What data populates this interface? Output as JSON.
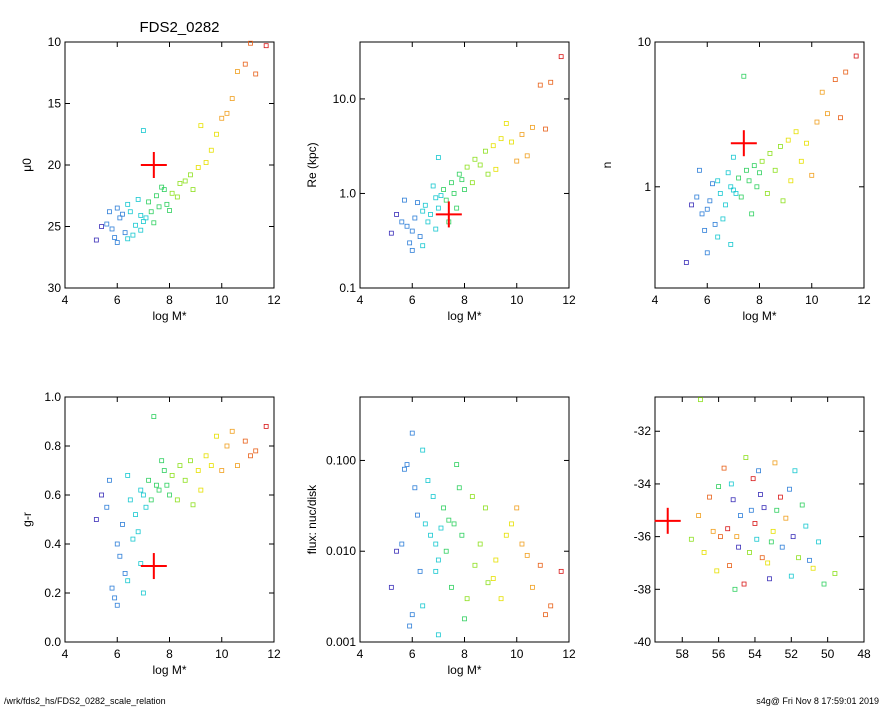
{
  "figure": {
    "footer_left": "/wrk/fds2_hs/FDS2_0282_scale_relation",
    "footer_right": "s4g@ Fri Nov  8 17:59:01 2019"
  },
  "colors": {
    "target_marker": "#ff0000",
    "axis": "#000000",
    "palette": [
      "#3b2fb8",
      "#2f7fd8",
      "#18c8d0",
      "#30d060",
      "#8ee020",
      "#e6e000",
      "#f0a020",
      "#e86018",
      "#d81818"
    ]
  },
  "chart_data": [
    {
      "type": "scatter",
      "title": "FDS2_0282",
      "xlabel": "log M*",
      "ylabel": "μ0",
      "xlim": [
        4,
        12
      ],
      "ylim": [
        30,
        10
      ],
      "y_inverted": true,
      "xticks": [
        4,
        6,
        8,
        10,
        12
      ],
      "yticks": [
        10,
        15,
        20,
        25,
        30
      ],
      "ytick_labels": [
        "10",
        "15",
        "20",
        "25",
        "30"
      ],
      "target": {
        "x": 7.4,
        "y": 20.0
      },
      "points": [
        [
          6.1,
          24.3
        ],
        [
          6.5,
          23.8
        ],
        [
          5.8,
          25.2
        ],
        [
          6.9,
          24.1
        ],
        [
          7.2,
          23.0
        ],
        [
          6.3,
          25.5
        ],
        [
          6.7,
          24.9
        ],
        [
          7.5,
          22.5
        ],
        [
          7.8,
          22.0
        ],
        [
          6.0,
          23.5
        ],
        [
          5.6,
          24.8
        ],
        [
          6.4,
          26.0
        ],
        [
          7.0,
          24.6
        ],
        [
          8.1,
          22.3
        ],
        [
          8.4,
          21.5
        ],
        [
          7.6,
          23.4
        ],
        [
          6.8,
          22.8
        ],
        [
          5.9,
          25.9
        ],
        [
          6.2,
          24.0
        ],
        [
          7.3,
          23.8
        ],
        [
          8.8,
          20.8
        ],
        [
          9.1,
          20.2
        ],
        [
          8.6,
          21.3
        ],
        [
          9.4,
          19.8
        ],
        [
          7.9,
          23.2
        ],
        [
          6.6,
          25.7
        ],
        [
          5.4,
          25.0
        ],
        [
          5.2,
          26.1
        ],
        [
          6.0,
          26.3
        ],
        [
          7.1,
          24.3
        ],
        [
          9.8,
          17.5
        ],
        [
          10.2,
          15.8
        ],
        [
          10.6,
          12.4
        ],
        [
          10.9,
          11.8
        ],
        [
          11.3,
          12.6
        ],
        [
          11.7,
          10.3
        ],
        [
          10.4,
          14.6
        ],
        [
          9.6,
          18.8
        ],
        [
          10.0,
          16.2
        ],
        [
          11.1,
          10.1
        ],
        [
          9.2,
          16.8
        ],
        [
          7.0,
          17.2
        ],
        [
          8.3,
          22.6
        ],
        [
          7.7,
          21.8
        ],
        [
          6.4,
          23.2
        ],
        [
          5.7,
          23.8
        ],
        [
          6.9,
          25.3
        ],
        [
          8.0,
          23.7
        ],
        [
          8.9,
          22.0
        ],
        [
          7.4,
          24.7
        ]
      ]
    },
    {
      "type": "scatter",
      "xlabel": "log M*",
      "ylabel": "Re (kpc)",
      "xlim": [
        4,
        12
      ],
      "ylim": [
        0.1,
        40
      ],
      "ylog": true,
      "xticks": [
        4,
        6,
        8,
        10,
        12
      ],
      "yticks": [
        0.1,
        1.0,
        10.0
      ],
      "ytick_labels": [
        "0.1",
        "1.0",
        "10.0"
      ],
      "target": {
        "x": 7.4,
        "y": 0.6
      },
      "points": [
        [
          6.1,
          0.55
        ],
        [
          6.5,
          0.75
        ],
        [
          5.8,
          0.45
        ],
        [
          6.9,
          0.9
        ],
        [
          7.2,
          1.1
        ],
        [
          6.3,
          0.35
        ],
        [
          6.7,
          0.6
        ],
        [
          7.5,
          1.3
        ],
        [
          7.8,
          1.6
        ],
        [
          6.0,
          0.4
        ],
        [
          5.6,
          0.5
        ],
        [
          6.4,
          0.28
        ],
        [
          7.0,
          0.7
        ],
        [
          8.1,
          1.9
        ],
        [
          8.4,
          2.3
        ],
        [
          7.6,
          1.0
        ],
        [
          6.8,
          1.2
        ],
        [
          5.9,
          0.3
        ],
        [
          6.2,
          0.8
        ],
        [
          7.3,
          0.85
        ],
        [
          8.8,
          2.8
        ],
        [
          9.1,
          3.2
        ],
        [
          8.6,
          2.0
        ],
        [
          9.4,
          3.8
        ],
        [
          7.9,
          1.4
        ],
        [
          6.6,
          0.5
        ],
        [
          5.4,
          0.6
        ],
        [
          5.2,
          0.38
        ],
        [
          6.0,
          0.25
        ],
        [
          7.1,
          0.95
        ],
        [
          9.8,
          3.5
        ],
        [
          10.2,
          4.2
        ],
        [
          10.6,
          5.0
        ],
        [
          10.9,
          14.0
        ],
        [
          11.3,
          15.0
        ],
        [
          11.7,
          28.0
        ],
        [
          10.4,
          2.5
        ],
        [
          9.6,
          5.5
        ],
        [
          10.0,
          2.2
        ],
        [
          11.1,
          4.8
        ],
        [
          9.2,
          1.8
        ],
        [
          7.0,
          2.4
        ],
        [
          8.3,
          1.3
        ],
        [
          7.7,
          0.7
        ],
        [
          6.4,
          0.65
        ],
        [
          5.7,
          0.85
        ],
        [
          6.9,
          0.42
        ],
        [
          8.0,
          1.1
        ],
        [
          8.9,
          1.6
        ],
        [
          7.4,
          0.5
        ]
      ]
    },
    {
      "type": "scatter",
      "xlabel": "log M*",
      "ylabel": "n",
      "xlim": [
        4,
        12
      ],
      "ylim": [
        0.2,
        10
      ],
      "ylog": true,
      "xticks": [
        4,
        6,
        8,
        10,
        12
      ],
      "yticks": [
        1,
        10
      ],
      "ytick_labels": [
        "1",
        "10"
      ],
      "target": {
        "x": 7.4,
        "y": 2.0
      },
      "points": [
        [
          6.1,
          0.8
        ],
        [
          6.5,
          0.9
        ],
        [
          5.8,
          0.65
        ],
        [
          6.9,
          1.0
        ],
        [
          7.2,
          1.15
        ],
        [
          6.3,
          0.55
        ],
        [
          6.7,
          0.75
        ],
        [
          7.5,
          1.3
        ],
        [
          7.8,
          1.4
        ],
        [
          6.0,
          0.7
        ],
        [
          5.6,
          0.85
        ],
        [
          6.4,
          0.45
        ],
        [
          7.0,
          0.95
        ],
        [
          8.1,
          1.5
        ],
        [
          8.4,
          1.7
        ],
        [
          7.6,
          1.1
        ],
        [
          6.8,
          1.25
        ],
        [
          5.9,
          0.5
        ],
        [
          6.2,
          1.05
        ],
        [
          7.3,
          0.85
        ],
        [
          8.8,
          1.9
        ],
        [
          9.1,
          2.1
        ],
        [
          8.6,
          1.3
        ],
        [
          9.4,
          2.4
        ],
        [
          7.9,
          1.0
        ],
        [
          6.6,
          0.6
        ],
        [
          5.4,
          0.75
        ],
        [
          5.2,
          0.3
        ],
        [
          6.0,
          0.35
        ],
        [
          7.1,
          0.9
        ],
        [
          9.8,
          2.0
        ],
        [
          10.2,
          2.8
        ],
        [
          10.6,
          3.2
        ],
        [
          10.9,
          5.5
        ],
        [
          11.3,
          6.2
        ],
        [
          11.7,
          8.0
        ],
        [
          10.4,
          4.5
        ],
        [
          9.6,
          1.5
        ],
        [
          10.0,
          1.2
        ],
        [
          11.1,
          3.0
        ],
        [
          9.2,
          1.1
        ],
        [
          7.0,
          1.6
        ],
        [
          8.3,
          0.9
        ],
        [
          7.7,
          0.65
        ],
        [
          6.4,
          1.1
        ],
        [
          5.7,
          1.3
        ],
        [
          6.9,
          0.4
        ],
        [
          8.0,
          1.25
        ],
        [
          8.9,
          0.8
        ],
        [
          7.4,
          5.8
        ]
      ]
    },
    {
      "type": "scatter",
      "xlabel": "log M*",
      "ylabel": "g-r",
      "xlim": [
        4,
        12
      ],
      "ylim": [
        0.0,
        1.0
      ],
      "xticks": [
        4,
        6,
        8,
        10,
        12
      ],
      "yticks": [
        0.0,
        0.2,
        0.4,
        0.6,
        0.8,
        1.0
      ],
      "ytick_labels": [
        "0.0",
        "0.2",
        "0.4",
        "0.6",
        "0.8",
        "1.0"
      ],
      "target": {
        "x": 7.4,
        "y": 0.31
      },
      "points": [
        [
          6.1,
          0.35
        ],
        [
          6.5,
          0.58
        ],
        [
          5.8,
          0.22
        ],
        [
          6.9,
          0.62
        ],
        [
          7.2,
          0.66
        ],
        [
          6.3,
          0.28
        ],
        [
          6.7,
          0.52
        ],
        [
          7.5,
          0.64
        ],
        [
          7.8,
          0.7
        ],
        [
          6.0,
          0.4
        ],
        [
          5.6,
          0.55
        ],
        [
          6.4,
          0.25
        ],
        [
          7.0,
          0.6
        ],
        [
          8.1,
          0.68
        ],
        [
          8.4,
          0.72
        ],
        [
          7.6,
          0.62
        ],
        [
          6.8,
          0.45
        ],
        [
          5.9,
          0.18
        ],
        [
          6.2,
          0.48
        ],
        [
          7.3,
          0.58
        ],
        [
          8.8,
          0.74
        ],
        [
          9.1,
          0.7
        ],
        [
          8.6,
          0.66
        ],
        [
          9.4,
          0.76
        ],
        [
          7.9,
          0.64
        ],
        [
          6.6,
          0.42
        ],
        [
          5.4,
          0.6
        ],
        [
          5.2,
          0.5
        ],
        [
          6.0,
          0.15
        ],
        [
          7.1,
          0.55
        ],
        [
          9.8,
          0.84
        ],
        [
          10.2,
          0.8
        ],
        [
          10.6,
          0.72
        ],
        [
          10.9,
          0.82
        ],
        [
          11.3,
          0.78
        ],
        [
          11.7,
          0.88
        ],
        [
          10.4,
          0.86
        ],
        [
          9.6,
          0.72
        ],
        [
          10.0,
          0.7
        ],
        [
          11.1,
          0.76
        ],
        [
          9.2,
          0.62
        ],
        [
          7.0,
          0.2
        ],
        [
          8.3,
          0.58
        ],
        [
          7.7,
          0.74
        ],
        [
          6.4,
          0.68
        ],
        [
          5.7,
          0.66
        ],
        [
          6.9,
          0.32
        ],
        [
          8.0,
          0.6
        ],
        [
          8.9,
          0.56
        ],
        [
          7.4,
          0.92
        ]
      ]
    },
    {
      "type": "scatter",
      "xlabel": "log M*",
      "ylabel": "flux: nuc/disk",
      "xlim": [
        4,
        12
      ],
      "ylim": [
        0.001,
        0.5
      ],
      "ylog": true,
      "xticks": [
        4,
        6,
        8,
        10,
        12
      ],
      "yticks": [
        0.001,
        0.01,
        0.1
      ],
      "ytick_labels": [
        "0.001",
        "0.010",
        "0.100"
      ],
      "points": [
        [
          6.1,
          0.05
        ],
        [
          6.5,
          0.02
        ],
        [
          5.8,
          0.09
        ],
        [
          6.9,
          0.012
        ],
        [
          7.2,
          0.03
        ],
        [
          6.3,
          0.006
        ],
        [
          6.7,
          0.015
        ],
        [
          7.5,
          0.004
        ],
        [
          7.8,
          0.05
        ],
        [
          6.0,
          0.2
        ],
        [
          5.6,
          0.012
        ],
        [
          6.4,
          0.0025
        ],
        [
          7.0,
          0.008
        ],
        [
          8.1,
          0.003
        ],
        [
          8.4,
          0.007
        ],
        [
          7.6,
          0.02
        ],
        [
          6.8,
          0.04
        ],
        [
          5.9,
          0.0015
        ],
        [
          6.2,
          0.025
        ],
        [
          7.3,
          0.01
        ],
        [
          8.8,
          0.03
        ],
        [
          9.1,
          0.005
        ],
        [
          8.6,
          0.012
        ],
        [
          9.4,
          0.003
        ],
        [
          7.9,
          0.015
        ],
        [
          6.6,
          0.06
        ],
        [
          5.4,
          0.01
        ],
        [
          5.2,
          0.004
        ],
        [
          6.0,
          0.002
        ],
        [
          7.1,
          0.018
        ],
        [
          9.8,
          0.02
        ],
        [
          10.2,
          0.012
        ],
        [
          10.6,
          0.004
        ],
        [
          10.9,
          0.007
        ],
        [
          11.3,
          0.0025
        ],
        [
          11.7,
          0.006
        ],
        [
          10.4,
          0.009
        ],
        [
          9.6,
          0.015
        ],
        [
          10.0,
          0.03
        ],
        [
          11.1,
          0.002
        ],
        [
          9.2,
          0.008
        ],
        [
          7.0,
          0.0012
        ],
        [
          8.3,
          0.04
        ],
        [
          7.7,
          0.09
        ],
        [
          6.4,
          0.13
        ],
        [
          5.7,
          0.08
        ],
        [
          6.9,
          0.006
        ],
        [
          8.0,
          0.0018
        ],
        [
          8.9,
          0.0045
        ],
        [
          7.4,
          0.022
        ]
      ]
    },
    {
      "type": "scatter",
      "xlim": [
        59.5,
        48
      ],
      "ylim": [
        -40,
        -30.7
      ],
      "x_inverted": true,
      "xticks": [
        58,
        56,
        54,
        52,
        50,
        48
      ],
      "yticks": [
        -40,
        -38,
        -36,
        -34,
        -32
      ],
      "ytick_labels": [
        "-40",
        "-38",
        "-36",
        "-34",
        "-32"
      ],
      "target": {
        "x": 58.8,
        "y": -35.4
      },
      "points": [
        [
          55.2,
          -34.6
        ],
        [
          54.8,
          -35.2
        ],
        [
          53.9,
          -36.1
        ],
        [
          52.8,
          -35.0
        ],
        [
          51.6,
          -36.8
        ],
        [
          50.8,
          -37.2
        ],
        [
          56.3,
          -35.8
        ],
        [
          55.7,
          -33.4
        ],
        [
          54.1,
          -33.8
        ],
        [
          53.2,
          -37.6
        ],
        [
          52.1,
          -34.2
        ],
        [
          51.2,
          -35.6
        ],
        [
          50.2,
          -37.8
        ],
        [
          49.6,
          -37.4
        ],
        [
          56.8,
          -36.6
        ],
        [
          57.1,
          -35.2
        ],
        [
          55.4,
          -37.1
        ],
        [
          54.6,
          -37.8
        ],
        [
          53.5,
          -34.9
        ],
        [
          52.5,
          -36.4
        ],
        [
          51.8,
          -33.5
        ],
        [
          56.0,
          -34.1
        ],
        [
          54.3,
          -36.6
        ],
        [
          53.0,
          -35.8
        ],
        [
          52.9,
          -33.2
        ],
        [
          55.9,
          -36.0
        ],
        [
          54.0,
          -35.5
        ],
        [
          53.7,
          -34.4
        ],
        [
          51.0,
          -36.9
        ],
        [
          50.5,
          -36.2
        ],
        [
          55.1,
          -38.0
        ],
        [
          54.5,
          -33.0
        ],
        [
          53.3,
          -37.0
        ],
        [
          52.3,
          -35.3
        ],
        [
          56.5,
          -34.5
        ],
        [
          55.5,
          -35.7
        ],
        [
          54.9,
          -36.4
        ],
        [
          53.8,
          -33.5
        ],
        [
          52.0,
          -37.5
        ],
        [
          51.4,
          -34.8
        ],
        [
          57.5,
          -36.1
        ],
        [
          56.1,
          -37.3
        ],
        [
          55.0,
          -36.0
        ],
        [
          53.6,
          -36.8
        ],
        [
          52.6,
          -34.5
        ],
        [
          51.9,
          -36.0
        ],
        [
          54.2,
          -35.0
        ],
        [
          55.3,
          -34.0
        ],
        [
          53.1,
          -36.2
        ],
        [
          57.0,
          -30.8
        ]
      ]
    }
  ]
}
